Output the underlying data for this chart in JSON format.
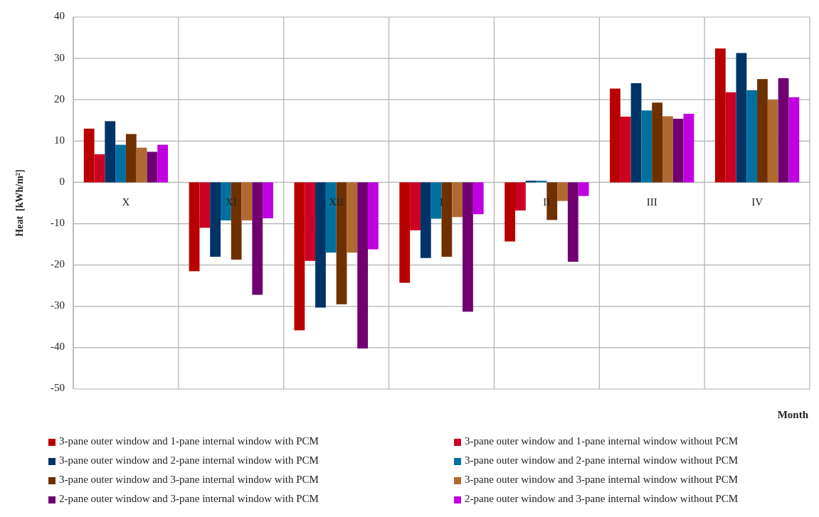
{
  "chart_data": {
    "type": "bar",
    "ylabel": "Heat  [kWh/m²]",
    "xlabel": "Month",
    "categories": [
      "X",
      "XI",
      "XII",
      "I",
      "II",
      "III",
      "IV"
    ],
    "series": [
      {
        "name": "3-pane outer window and 1-pane internal window with PCM",
        "color": "#b80000",
        "values": [
          13,
          -21.5,
          -35.8,
          -24.3,
          -14.3,
          22.7,
          32.4
        ]
      },
      {
        "name": "3-pane outer window and 1-pane internal window without PCM",
        "color": "#cc0022",
        "values": [
          6.8,
          -11,
          -19,
          -11.6,
          -6.8,
          15.9,
          21.8
        ]
      },
      {
        "name": "3-pane outer window and 2-pane internal window with PCM",
        "color": "#003366",
        "values": [
          14.8,
          -18,
          -30.3,
          -18.3,
          0.4,
          24,
          31.3
        ]
      },
      {
        "name": "3-pane outer window and 2-pane internal window without PCM",
        "color": "#0070a0",
        "values": [
          9.1,
          -9.2,
          -17,
          -8.8,
          0.4,
          17.4,
          22.3
        ]
      },
      {
        "name": "3-pane outer window and 3-pane internal window with PCM",
        "color": "#6f3000",
        "values": [
          11.7,
          -18.7,
          -29.5,
          -18,
          -9.1,
          19.3,
          25
        ]
      },
      {
        "name": "3-pane outer window and 3-pane internal window without PCM",
        "color": "#b06a30",
        "values": [
          8.4,
          -9.2,
          -17,
          -8.4,
          -4.5,
          16,
          20
        ]
      },
      {
        "name": "2-pane outer window and 3-pane internal window with PCM",
        "color": "#700070",
        "values": [
          7.4,
          -27.2,
          -40.2,
          -31.3,
          -19.2,
          15.4,
          25.2
        ]
      },
      {
        "name": "2-pane outer window and 3-pane internal window without PCM",
        "color": "#c000e0",
        "values": [
          9.1,
          -8.7,
          -16.2,
          -7.7,
          -3.3,
          16.6,
          20.6
        ]
      }
    ],
    "ylim": [
      -50,
      40
    ],
    "yticks": [
      -50,
      -40,
      -30,
      -20,
      -10,
      0,
      10,
      20,
      30,
      40
    ],
    "grid": true,
    "legend": "bottom"
  }
}
